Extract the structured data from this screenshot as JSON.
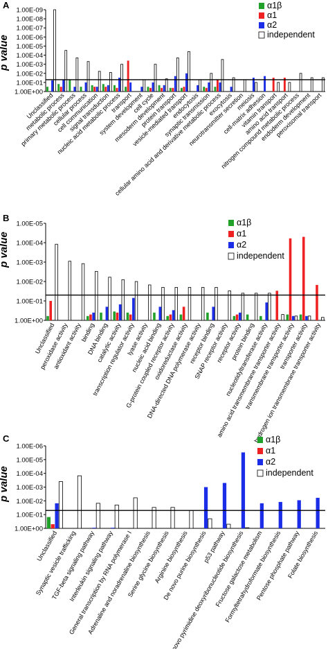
{
  "legend": {
    "entries": [
      {
        "name": "α1β",
        "color": "#22a12a"
      },
      {
        "name": "α1",
        "color": "#ee2222"
      },
      {
        "name": "α2",
        "color": "#1c2de8"
      },
      {
        "name": "independent",
        "color": "#ffffff"
      }
    ]
  },
  "chart_data": [
    {
      "panel": "A",
      "type": "bar",
      "ylabel": "p value",
      "y_scale": "log",
      "y_ticks": [
        "1.00E-09",
        "1.00E-08",
        "1.00E-07",
        "1.00E-06",
        "1.00E-05",
        "1.00E-04",
        "1.00E-03",
        "1.00E-02",
        "1.00E-01",
        "1.00E+00"
      ],
      "ylim": [
        1,
        1e-09
      ],
      "threshold": 0.05,
      "legend_position": "top-right",
      "categories": [
        "Unclassified",
        "metabolic process",
        "primary metabolic process",
        "cellular process",
        "cell communication",
        "signal transduction",
        "nucleic acid metabolic process",
        "transport",
        "system development",
        "cell cycle",
        "mesoderm development",
        "protein transport",
        "vesicle-mediated transport",
        "endocytosis",
        "synaptic transmission",
        "cellular amino acid and derivative metabolic process",
        "exocytosis",
        "neurotransmitter secretion",
        "meiosis",
        "cell-matrix adhesion",
        "vitamin transport",
        "amino acid transport",
        "nitrogen compound metabolic process",
        "endoderm development",
        "peroxisomal transport"
      ],
      "series": [
        {
          "name": "α1β",
          "values": [
            0.3,
            0.15,
            0.05,
            0.3,
            0.2,
            0.15,
            0.2,
            0.3,
            null,
            0.3,
            0.2,
            0.4,
            0.4,
            null,
            0.3,
            0.3,
            null,
            null,
            null,
            null,
            null,
            null,
            null,
            null,
            null
          ]
        },
        {
          "name": "α1",
          "values": [
            null,
            0.3,
            null,
            null,
            0.3,
            0.3,
            0.4,
            0.0004,
            null,
            0.4,
            0.4,
            0.4,
            0.3,
            null,
            0.4,
            0.05,
            null,
            null,
            null,
            null,
            0.03,
            0.03,
            null,
            null,
            null
          ]
        },
        {
          "name": "α2",
          "values": [
            0.06,
            0.05,
            0.3,
            0.1,
            0.3,
            0.2,
            0.03,
            0.1,
            0.3,
            0.1,
            0.2,
            0.02,
            0.01,
            0.2,
            0.1,
            0.1,
            0.3,
            null,
            0.03,
            0.02,
            null,
            null,
            null,
            null,
            null
          ]
        },
        {
          "name": "independent",
          "values": [
            1e-09,
            3e-05,
            0.0002,
            0.0005,
            0.006,
            0.008,
            0.001,
            null,
            0.05,
            0.001,
            0.04,
            0.0002,
            4e-05,
            0.05,
            0.01,
            0.0003,
            0.03,
            0.05,
            0.1,
            null,
            0.1,
            0.1,
            0.01,
            0.03,
            0.03
          ]
        }
      ]
    },
    {
      "panel": "B",
      "type": "bar",
      "ylabel": "p value",
      "y_scale": "log",
      "y_ticks": [
        "1.00E-05",
        "1.00E-04",
        "1.00E-03",
        "1.00E-02",
        "1.00E-01",
        "1.00E+00"
      ],
      "ylim": [
        1,
        1e-05
      ],
      "threshold": 0.05,
      "legend_position": "top-right",
      "categories": [
        "Unclassified",
        "peroxidase activity",
        "antioxidant activity",
        "binding",
        "DNA binding",
        "catalytic activity",
        "transcription regulator activity",
        "lyase activity",
        "nucleic acid binding",
        "G-protein coupled receptor activity",
        "oxidoreductase activity",
        "DNA-directed DNA polymerase activity",
        "receptor binding",
        "SNAP receptor activity",
        "receptor activity",
        "protein binding",
        "nucleotidyltransferase activity",
        "amino acid transmembrane transporter activity",
        "transmembrane transporter activity",
        "transporter activity",
        "hydrogen ion transmembrane transporter activity"
      ],
      "series": [
        {
          "name": "α1β",
          "values": [
            0.6,
            null,
            null,
            0.6,
            0.4,
            0.35,
            0.4,
            null,
            0.4,
            0.6,
            0.5,
            null,
            0.4,
            null,
            0.6,
            0.5,
            0.6,
            null,
            0.5,
            0.5,
            null
          ]
        },
        {
          "name": "α1",
          "values": [
            0.1,
            null,
            null,
            0.5,
            null,
            0.4,
            0.5,
            null,
            null,
            0.5,
            0.2,
            null,
            null,
            null,
            0.5,
            null,
            null,
            0.03,
            6e-05,
            5e-05,
            0.015
          ]
        },
        {
          "name": "α2",
          "values": [
            null,
            null,
            null,
            0.4,
            0.2,
            0.15,
            0.07,
            null,
            0.2,
            0.3,
            null,
            null,
            0.2,
            null,
            0.4,
            null,
            0.12,
            null,
            0.6,
            0.6,
            null
          ]
        },
        {
          "name": "independent",
          "values": [
            0.00012,
            0.0009,
            0.0012,
            0.003,
            0.006,
            0.008,
            0.01,
            0.015,
            0.02,
            0.02,
            0.02,
            0.02,
            0.02,
            0.03,
            0.04,
            0.04,
            0.04,
            0.5,
            0.6,
            0.6,
            0.7
          ]
        }
      ]
    },
    {
      "panel": "C",
      "type": "bar",
      "ylabel": "p value",
      "y_scale": "log",
      "y_ticks": [
        "1.00E-06",
        "1.00E-05",
        "1.00E-04",
        "1.00E-03",
        "1.00E-02",
        "1.00E-01",
        "1.00E+00"
      ],
      "ylim": [
        1,
        1e-06
      ],
      "threshold": 0.05,
      "legend_position": "top-right",
      "categories": [
        "Unclassified",
        "Synaptic vesicle trafficking",
        "TGF-beta signaling pathway",
        "Interleukin signaling pathway",
        "General transcription by RNA polymerase I",
        "Adrenaline and noradrenaline biosynthesis",
        "Serine glycine biosynthesis",
        "Arginine biosynthesis",
        "De novo purine biosynthesis",
        "p53 pathway",
        "De novo pyrimidine deoxyribonucleotide biosynthesis",
        "Fructose galactose metabolism",
        "Formyltetrahydroformate biosynthesis",
        "Pentose phosphate pathway",
        "Folate biosynthesis"
      ],
      "series": [
        {
          "name": "α1β",
          "values": [
            0.15,
            null,
            null,
            null,
            null,
            null,
            null,
            null,
            null,
            null,
            null,
            null,
            null,
            null,
            null
          ]
        },
        {
          "name": "α1",
          "values": [
            0.5,
            null,
            null,
            null,
            null,
            null,
            null,
            null,
            null,
            null,
            null,
            null,
            null,
            null,
            null
          ]
        },
        {
          "name": "α2",
          "values": [
            0.015,
            null,
            0.9,
            0.9,
            null,
            null,
            null,
            null,
            0.001,
            0.0005,
            3e-06,
            0.015,
            0.012,
            0.009,
            0.006
          ]
        },
        {
          "name": "independent",
          "values": [
            0.0004,
            0.00015,
            0.015,
            0.02,
            0.006,
            0.03,
            0.03,
            0.05,
            0.2,
            0.5,
            0.9,
            null,
            null,
            null,
            null
          ]
        }
      ]
    }
  ],
  "panel_letters": [
    "A",
    "B",
    "C"
  ]
}
